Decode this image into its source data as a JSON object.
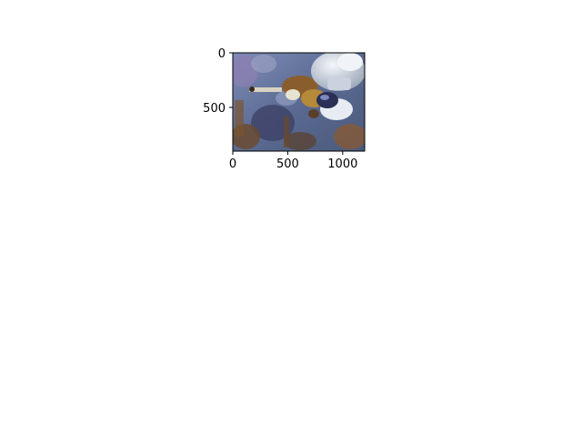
{
  "chart_data": {
    "type": "image",
    "title": "",
    "xlabel": "",
    "ylabel": "",
    "xlim": [
      0,
      1200
    ],
    "ylim": [
      900,
      0
    ],
    "x_ticks": [
      {
        "value": 0,
        "label": "0"
      },
      {
        "value": 500,
        "label": "500"
      },
      {
        "value": 1000,
        "label": "1000"
      }
    ],
    "y_ticks": [
      {
        "value": 0,
        "label": "0"
      },
      {
        "value": 500,
        "label": "500"
      }
    ],
    "grid": false,
    "image": {
      "content": "astronaut-spacewalk-photo",
      "colors": {
        "background_blue": "#6a7aa3",
        "shadow_navy": "#2b2f55",
        "rust_brown": "#6a4a2a",
        "suit_white": "#e6ecf2",
        "gold": "#b58a3a"
      }
    }
  }
}
